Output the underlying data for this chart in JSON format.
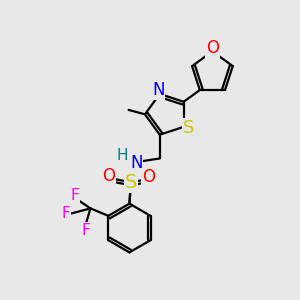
{
  "bg_color": "#e8e8e8",
  "atom_colors": {
    "C": "#000000",
    "H": "#008080",
    "N": "#0000ff",
    "O": "#ff0000",
    "S_yellow": "#cccc00",
    "F": "#ff00ff"
  },
  "bond_color": "#000000",
  "bond_width": 1.6,
  "dbl_sep": 0.1,
  "font_size": 11
}
